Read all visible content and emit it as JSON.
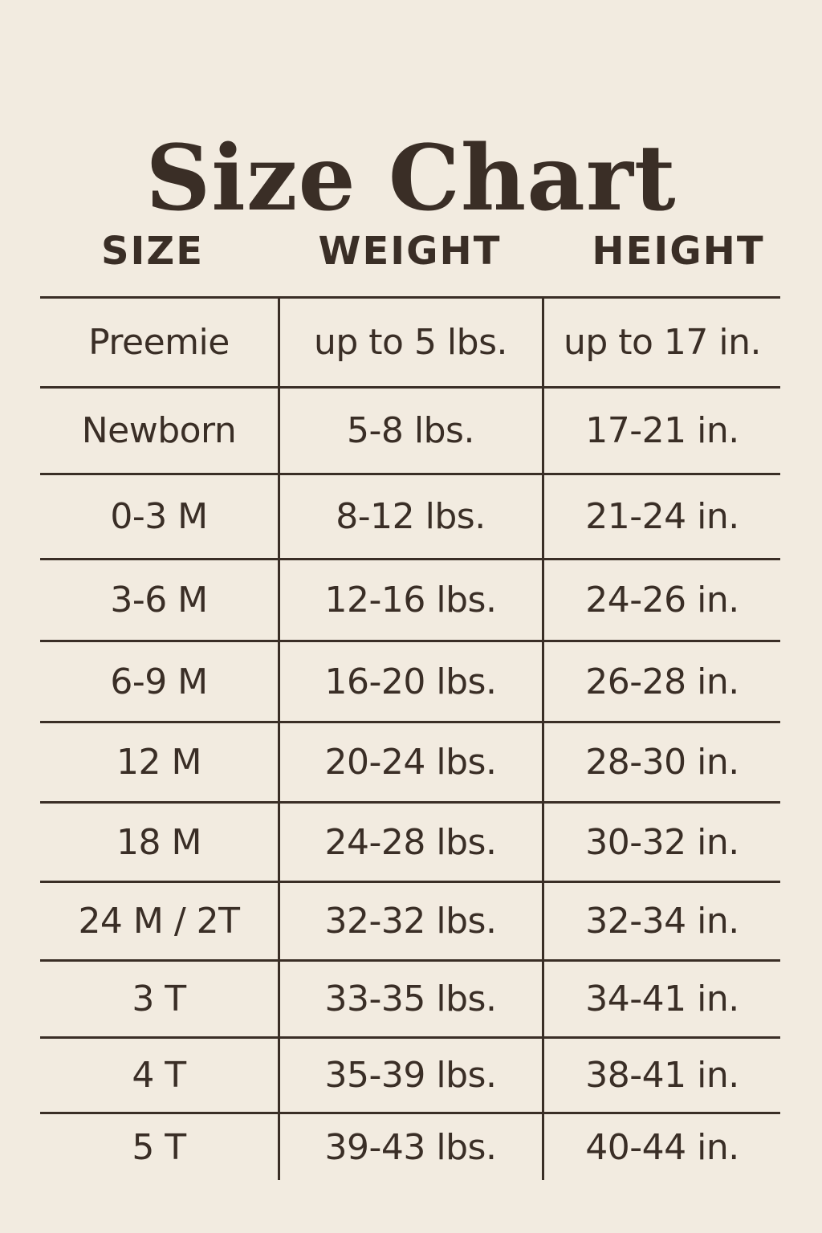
{
  "title": "Size Chart",
  "headers": [
    "SIZE",
    "WEIGHT",
    "HEIGHT"
  ],
  "rows": [
    [
      "Preemie",
      "up to 5 lbs.",
      "up to 17 in."
    ],
    [
      "Newborn",
      "5-8 lbs.",
      "17-21 in."
    ],
    [
      "0-3 M",
      "8-12 lbs.",
      "21-24 in."
    ],
    [
      "3-6 M",
      "12-16 lbs.",
      "24-26 in."
    ],
    [
      "6-9 M",
      "16-20 lbs.",
      "26-28 in."
    ],
    [
      "12 M",
      "20-24 lbs.",
      "28-30 in."
    ],
    [
      "18 M",
      "24-28 lbs.",
      "30-32 in."
    ],
    [
      "24 M / 2T",
      "32-32 lbs.",
      "32-34 in."
    ],
    [
      "3 T",
      "33-35 lbs.",
      "34-41 in."
    ],
    [
      "4 T",
      "35-39 lbs.",
      "38-41 in."
    ],
    [
      "5 T",
      "39-43 lbs.",
      "40-44 in."
    ]
  ],
  "colors": {
    "background": "#f2ebe0",
    "text": "#3a2e26"
  }
}
